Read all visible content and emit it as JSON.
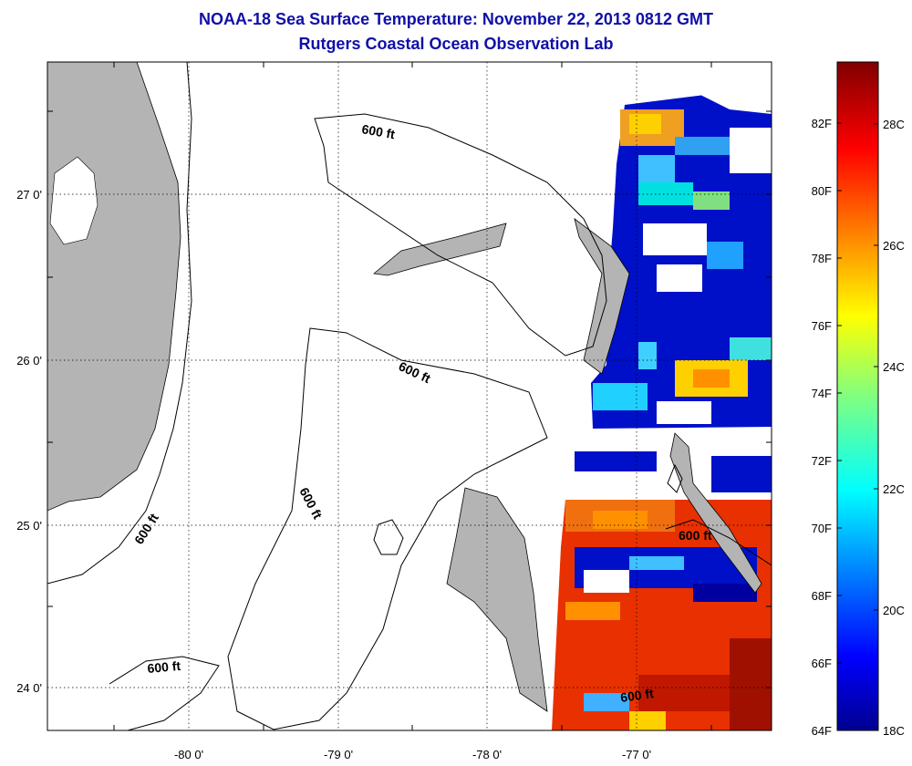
{
  "title_line1": "NOAA-18 Sea Surface Temperature:  November 22, 2013 0812 GMT",
  "title_line2": "Rutgers Coastal Ocean Observation Lab",
  "map": {
    "lat_ticks": [
      "27 0'",
      "26 0'",
      "25 0'",
      "24 0'"
    ],
    "lon_ticks": [
      "-80 0'",
      "-79 0'",
      "-78 0'",
      "-77 0'"
    ],
    "contour_labels": [
      "600 ft",
      "600 ft",
      "600 ft",
      "600 ft",
      "600 ft",
      "600 ft",
      "600 ft"
    ],
    "land_color": "#b4b4b4",
    "grid": "dotted"
  },
  "colorbar": {
    "fahrenheit_labels": [
      "82F",
      "80F",
      "78F",
      "76F",
      "74F",
      "72F",
      "70F",
      "68F",
      "66F",
      "64F"
    ],
    "celsius_labels": [
      "28C",
      "26C",
      "24C",
      "22C",
      "20C",
      "18C"
    ],
    "colormap": "jet",
    "min_f": 64,
    "max_f": 84
  }
}
